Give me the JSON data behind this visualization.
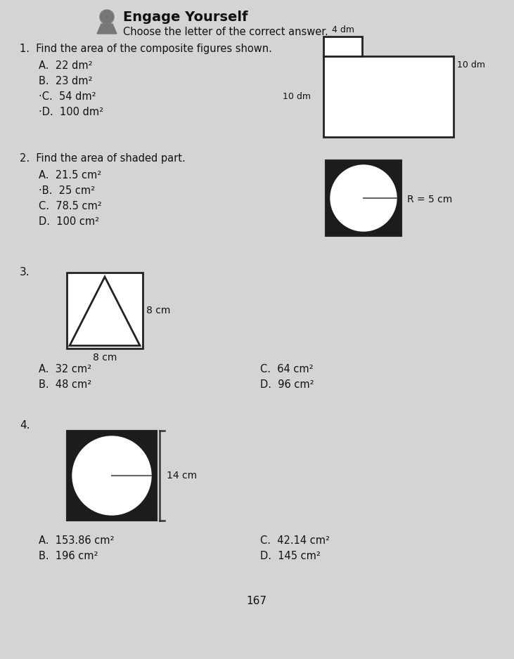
{
  "bg_color": "#d4d4d4",
  "title": "Engage Yourself",
  "subtitle": "Choose the letter of the correct answer.",
  "q1_text": "1.  Find the area of the composite figures shown.",
  "q1_answers": [
    "A.  22 dm²",
    "B.  23 dm²",
    "·C.  54 dm²",
    "·D.  100 dm²"
  ],
  "q2_text": "2.  Find the area of shaded part.",
  "q2_answers": [
    "A.  21.5 cm²",
    "·B.  25 cm²",
    "C.  78.5 cm²",
    "D.  100 cm²"
  ],
  "q2_r_label": "R = 5 cm",
  "q3_number": "3.",
  "q3_label_right": "8 cm",
  "q3_label_bottom": "8 cm",
  "q3_answers_left": [
    "A.  32 cm²",
    "B.  48 cm²"
  ],
  "q3_answers_right": [
    "C.  64 cm²",
    "D.  96 cm²"
  ],
  "q4_number": "4.",
  "q4_label": "14 cm",
  "q4_answers_left": [
    "A.  153.86 cm²",
    "B.  196 cm²"
  ],
  "q4_answers_right": [
    "C.  42.14 cm²",
    "D.  145 cm²"
  ],
  "page_number": "167"
}
